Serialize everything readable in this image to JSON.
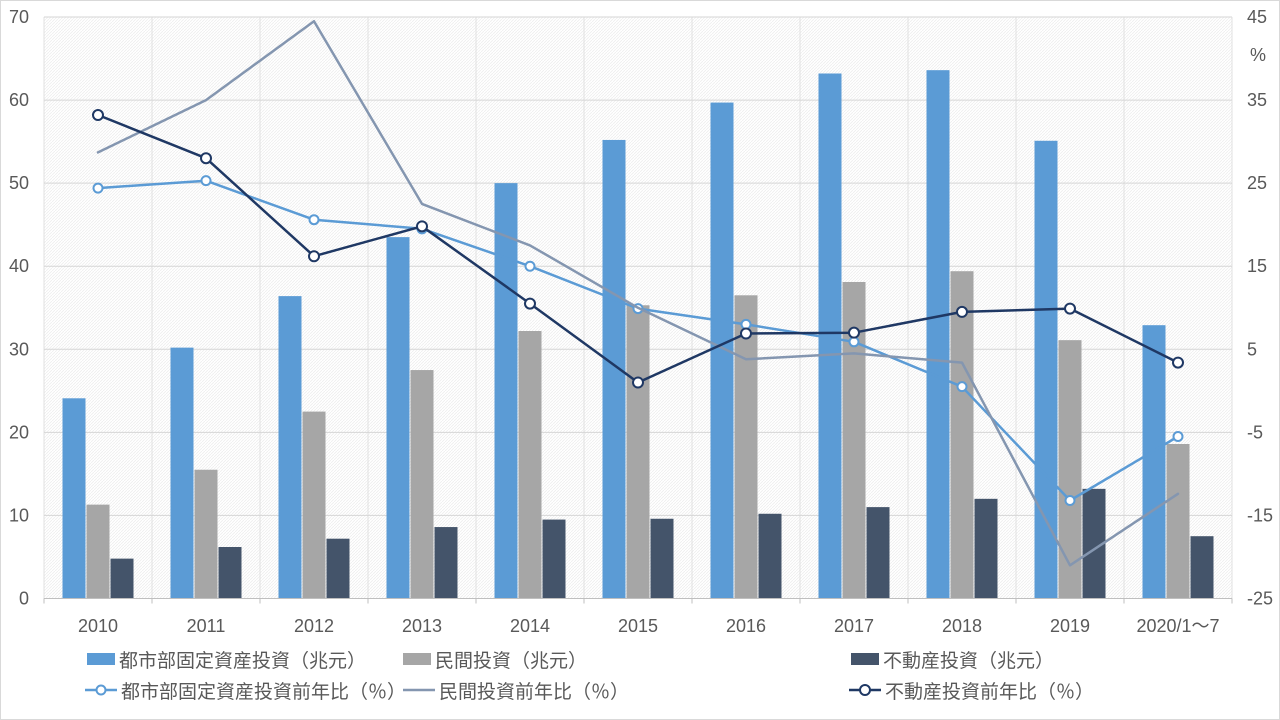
{
  "chart_data": {
    "type": "bar+line combo",
    "title": "",
    "categories": [
      "2010",
      "2011",
      "2012",
      "2013",
      "2014",
      "2015",
      "2016",
      "2017",
      "2018",
      "2019",
      "2020/1～7"
    ],
    "left_axis": {
      "min": 0,
      "max": 70,
      "ticks": [
        0,
        10,
        20,
        30,
        40,
        50,
        60,
        70
      ]
    },
    "right_axis": {
      "min": -25,
      "max": 45,
      "ticks": [
        45,
        35,
        25,
        15,
        5,
        -5,
        -15,
        -25
      ],
      "unit_label": "%"
    },
    "grid": "horizontal and vertical light gray, hatched plot background",
    "legend_position": "bottom, two rows",
    "bar_series": [
      {
        "name": "都市部固定資産投資（兆元）",
        "color": "#5B9BD5",
        "axis": "left",
        "values": [
          24.1,
          30.2,
          36.4,
          43.5,
          50.0,
          55.2,
          59.7,
          63.2,
          63.6,
          55.1,
          32.9
        ]
      },
      {
        "name": "民間投資（兆元）",
        "color": "#A6A6A6",
        "axis": "left",
        "values": [
          11.3,
          15.5,
          22.5,
          27.5,
          32.2,
          35.3,
          36.5,
          38.1,
          39.4,
          31.1,
          18.6
        ]
      },
      {
        "name": "不動産投資（兆元）",
        "color": "#44546A",
        "axis": "left",
        "values": [
          4.8,
          6.2,
          7.2,
          8.6,
          9.5,
          9.6,
          10.2,
          11.0,
          12.0,
          13.2,
          7.5
        ]
      }
    ],
    "line_series": [
      {
        "name": "都市部固定資産投資前年比（％）",
        "color": "#5B9BD5",
        "marker": "circle",
        "marker_radius": 4.5,
        "axis": "right",
        "values": [
          24.4,
          25.3,
          20.6,
          19.5,
          15.0,
          9.9,
          8.0,
          5.9,
          0.5,
          -13.2,
          -5.5
        ]
      },
      {
        "name": "民間投資前年比（％）",
        "color": "#8496B0",
        "marker": "none",
        "marker_radius": 0,
        "axis": "right",
        "values": [
          28.7,
          35.0,
          44.5,
          22.5,
          17.5,
          10.0,
          3.8,
          4.5,
          3.4,
          -21.0,
          -12.4
        ]
      },
      {
        "name": "不動産投資前年比（％）",
        "color": "#1F3864",
        "marker": "circle",
        "marker_radius": 5,
        "axis": "right",
        "values": [
          33.2,
          28.0,
          16.2,
          19.8,
          10.5,
          1.0,
          6.9,
          7.0,
          9.5,
          9.9,
          3.4
        ]
      }
    ],
    "colors": {
      "axis_line": "#BFBFBF",
      "gridline": "#D6D6D6",
      "vertical_gridline": "#E0E0E0",
      "hatch": "#ECECEC",
      "text": "#595959"
    }
  }
}
